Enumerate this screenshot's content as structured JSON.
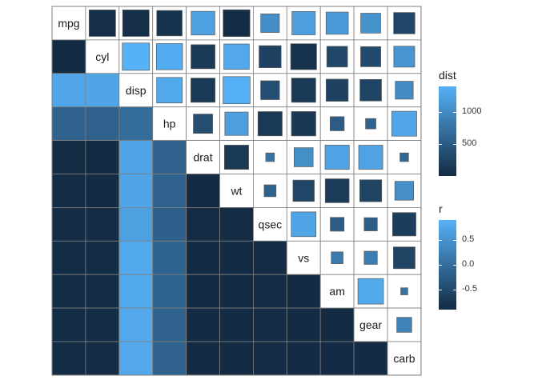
{
  "chart_data": {
    "type": "heatmap",
    "variables": [
      "mpg",
      "cyl",
      "disp",
      "hp",
      "drat",
      "wt",
      "qsec",
      "vs",
      "am",
      "gear",
      "carb"
    ],
    "lower_triangle": {
      "fill": "dist",
      "values": [
        [
          null,
          null,
          null,
          null,
          null,
          null,
          null,
          null,
          null,
          null,
          null
        ],
        [
          5,
          null,
          null,
          null,
          null,
          null,
          null,
          null,
          null,
          null,
          null
        ],
        [
          1281,
          1273,
          null,
          null,
          null,
          null,
          null,
          null,
          null,
          null,
          null
        ],
        [
          580,
          575,
          690,
          null,
          null,
          null,
          null,
          null,
          null,
          null,
          null
        ],
        [
          20,
          6,
          1276,
          579,
          null,
          null,
          null,
          null,
          null,
          null,
          null
        ],
        [
          16,
          6,
          1273,
          570,
          7,
          null,
          null,
          null,
          null,
          null,
          null
        ],
        [
          15,
          14,
          1230,
          560,
          18,
          19,
          null,
          null,
          null,
          null,
          null
        ],
        [
          26,
          26,
          1315,
          590,
          6,
          6,
          18,
          null,
          null,
          null,
          null
        ],
        [
          26,
          26,
          1315,
          590,
          6,
          7,
          19,
          4,
          null,
          null,
          null
        ],
        [
          25,
          24,
          1310,
          585,
          5,
          6,
          17,
          3,
          3,
          null,
          null
        ],
        [
          22,
          19,
          1310,
          585,
          11,
          10,
          17,
          7,
          7,
          5,
          null
        ]
      ]
    },
    "upper_triangle": {
      "fill": "r",
      "size": "abs(r)",
      "values": [
        [
          null,
          -0.85,
          -0.85,
          -0.78,
          0.68,
          -0.87,
          0.42,
          0.66,
          0.6,
          0.48,
          -0.55
        ],
        [
          null,
          null,
          0.9,
          0.83,
          -0.7,
          0.78,
          -0.59,
          -0.81,
          -0.52,
          -0.49,
          0.53
        ],
        [
          null,
          null,
          null,
          0.79,
          -0.71,
          0.89,
          -0.43,
          -0.71,
          -0.59,
          -0.56,
          0.39
        ],
        [
          null,
          null,
          null,
          null,
          -0.45,
          0.66,
          -0.71,
          -0.72,
          -0.24,
          -0.13,
          0.75
        ],
        [
          null,
          null,
          null,
          null,
          null,
          -0.71,
          0.09,
          0.44,
          0.71,
          0.7,
          -0.09
        ],
        [
          null,
          null,
          null,
          null,
          null,
          null,
          -0.17,
          -0.55,
          -0.69,
          -0.58,
          0.43
        ],
        [
          null,
          null,
          null,
          null,
          null,
          null,
          null,
          0.74,
          -0.23,
          -0.21,
          -0.66
        ],
        [
          null,
          null,
          null,
          null,
          null,
          null,
          null,
          null,
          0.17,
          0.21,
          -0.57
        ],
        [
          null,
          null,
          null,
          null,
          null,
          null,
          null,
          null,
          null,
          0.79,
          0.06
        ],
        [
          null,
          null,
          null,
          null,
          null,
          null,
          null,
          null,
          null,
          null,
          0.27
        ],
        [
          null,
          null,
          null,
          null,
          null,
          null,
          null,
          null,
          null,
          null,
          null
        ]
      ]
    },
    "legends": [
      {
        "title": "dist",
        "range": [
          2,
          1400
        ],
        "breaks": [
          500,
          1000
        ],
        "break_labels": [
          "500",
          "1000"
        ]
      },
      {
        "title": "r",
        "range": [
          -0.9,
          0.9
        ],
        "breaks": [
          -0.5,
          0.0,
          0.5
        ],
        "break_labels": [
          "-0.5",
          "0.0",
          "0.5"
        ]
      }
    ],
    "colors": {
      "low": "#132b43",
      "high": "#56b1f7"
    },
    "legend_placement": "right",
    "grid": false
  }
}
